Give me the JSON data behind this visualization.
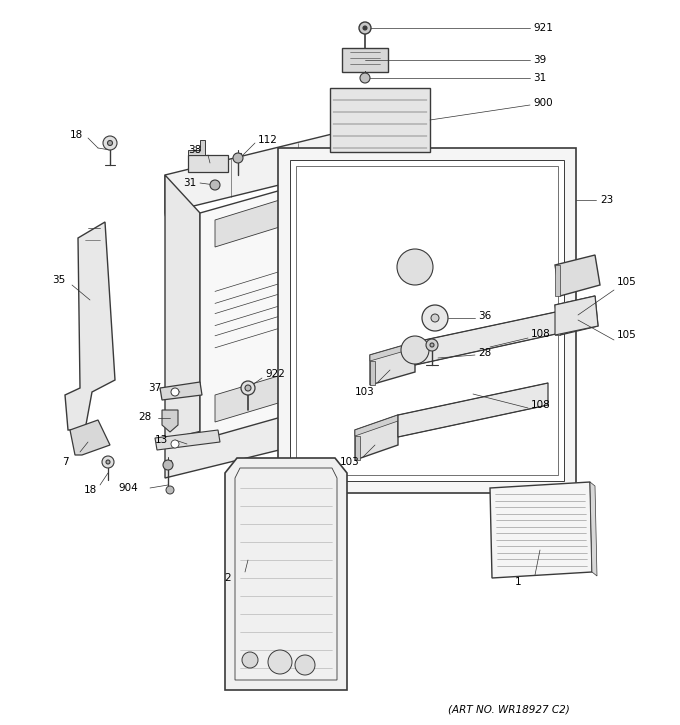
{
  "art_no": "(ART NO. WR18927 C2)",
  "bg": "#ffffff",
  "lc": "#3a3a3a",
  "tc": "#000000",
  "fs": 7.5,
  "lw": 0.8
}
